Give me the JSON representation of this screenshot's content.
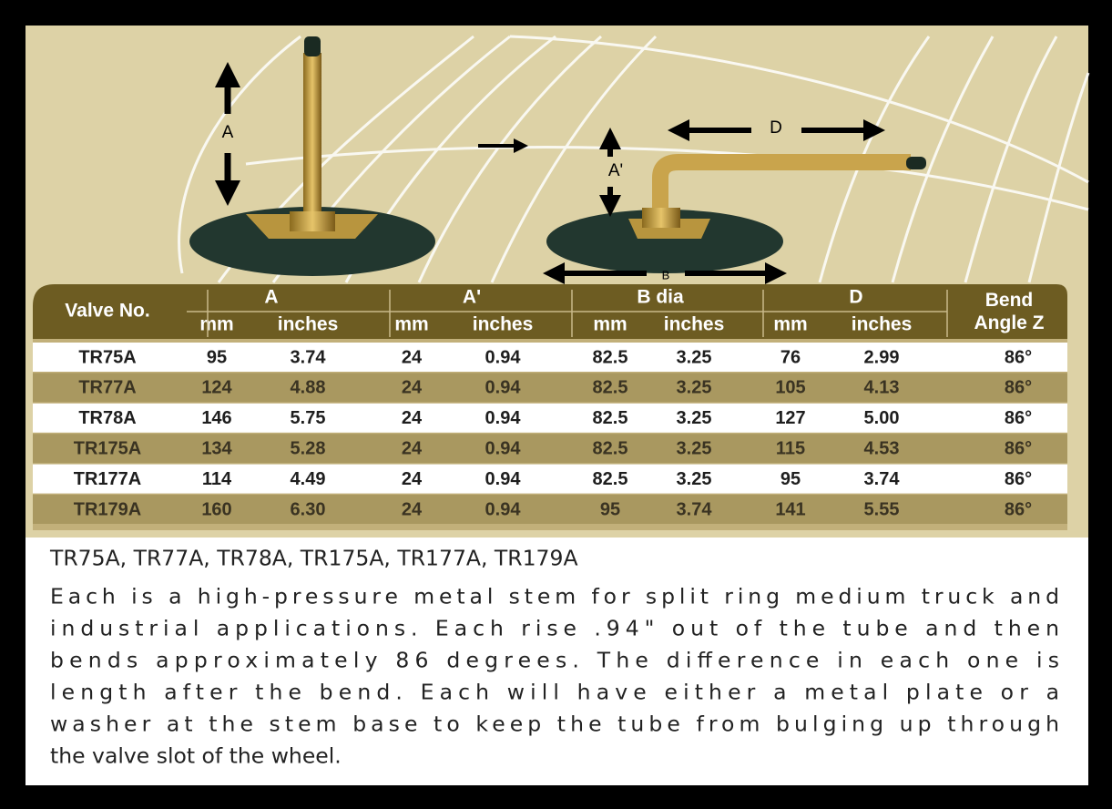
{
  "diagram": {
    "labels": {
      "a": "A",
      "a_prime": "A'",
      "d": "D",
      "b": "B"
    }
  },
  "table": {
    "header": {
      "valve": "Valve No.",
      "groups": [
        "A",
        "A'",
        "B dia",
        "D"
      ],
      "units": [
        "mm",
        "inches",
        "mm",
        "inches",
        "mm",
        "inches",
        "mm",
        "inches"
      ],
      "bend": "Bend Angle Z"
    },
    "rows": [
      [
        "TR75A",
        "95",
        "3.74",
        "24",
        "0.94",
        "82.5",
        "3.25",
        "76",
        "2.99",
        "86°"
      ],
      [
        "TR77A",
        "124",
        "4.88",
        "24",
        "0.94",
        "82.5",
        "3.25",
        "105",
        "4.13",
        "86°"
      ],
      [
        "TR78A",
        "146",
        "5.75",
        "24",
        "0.94",
        "82.5",
        "3.25",
        "127",
        "5.00",
        "86°"
      ],
      [
        "TR175A",
        "134",
        "5.28",
        "24",
        "0.94",
        "82.5",
        "3.25",
        "115",
        "4.53",
        "86°"
      ],
      [
        "TR177A",
        "114",
        "4.49",
        "24",
        "0.94",
        "82.5",
        "3.25",
        "95",
        "3.74",
        "86°"
      ],
      [
        "TR179A",
        "160",
        "6.30",
        "24",
        "0.94",
        "95",
        "3.74",
        "141",
        "5.55",
        "86°"
      ]
    ]
  },
  "caption": {
    "title": "TR75A, TR77A, TR78A, TR175A, TR177A, TR179A",
    "lines": [
      "Each is a high-pressure metal stem for split ring medium truck and",
      "industrial applications. Each rise .94\" out of the tube and then",
      "bends approximately 86 degrees. The difference in each one is",
      "length after the bend. Each will have either a metal plate or a",
      "washer at the stem base to keep the tube from bulging up through",
      "the valve slot of the wheel."
    ]
  }
}
